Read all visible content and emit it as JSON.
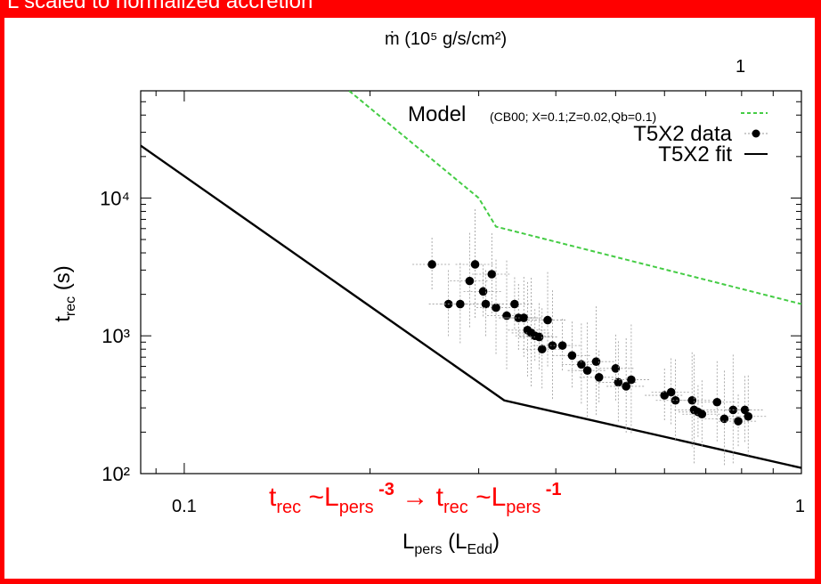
{
  "banner": {
    "text": "L scaled to normalized accretion",
    "color": "#ff0000"
  },
  "top_axis": {
    "label": "ṁ (10⁵ g/s/cm²)",
    "tick": "1"
  },
  "chart_data": {
    "type": "scatter",
    "x_scale": "log",
    "y_scale": "log",
    "xlim": [
      0.085,
      1
    ],
    "ylim": [
      100,
      60000
    ],
    "xlabel": "L_pers (L_Edd)",
    "ylabel": "t_rec (s)",
    "x_ticks": [
      {
        "value": 0.1,
        "label": "0.1"
      },
      {
        "value": 1,
        "label": "1"
      }
    ],
    "y_ticks": [
      {
        "value": 100,
        "label": "10²"
      },
      {
        "value": 1000,
        "label": "10³"
      },
      {
        "value": 10000,
        "label": "10⁴"
      }
    ],
    "grid": false,
    "legend_position": "top-right",
    "legend": [
      {
        "name": "Model",
        "detail": "(CB00; X=0.1;Z=0.02,Qb=0.1)",
        "style": "dashed-line",
        "color": "#44cc44"
      },
      {
        "name": "T5X2 data",
        "style": "points",
        "color": "#000000"
      },
      {
        "name": "T5X2 fit",
        "style": "solid-line",
        "color": "#000000"
      }
    ],
    "series": [
      {
        "name": "Model",
        "kind": "line",
        "color": "#44cc44",
        "x": [
          0.185,
          0.3,
          0.32,
          1.0
        ],
        "y": [
          60000,
          10000,
          6200,
          1700
        ]
      },
      {
        "name": "T5X2 fit",
        "kind": "line",
        "color": "#000000",
        "x": [
          0.085,
          0.33,
          1.0
        ],
        "y": [
          24000,
          340,
          110
        ]
      },
      {
        "name": "T5X2 data",
        "kind": "points",
        "color": "#000000",
        "x": [
          0.252,
          0.268,
          0.28,
          0.29,
          0.296,
          0.305,
          0.308,
          0.315,
          0.32,
          0.333,
          0.343,
          0.348,
          0.355,
          0.36,
          0.365,
          0.37,
          0.376,
          0.38,
          0.388,
          0.395,
          0.41,
          0.425,
          0.44,
          0.45,
          0.465,
          0.47,
          0.5,
          0.505,
          0.52,
          0.53,
          0.6,
          0.615,
          0.625,
          0.665,
          0.67,
          0.68,
          0.69,
          0.73,
          0.75,
          0.775,
          0.79,
          0.81,
          0.82
        ],
        "y": [
          3300,
          1700,
          1700,
          2500,
          3300,
          2100,
          1700,
          2800,
          1600,
          1400,
          1700,
          1350,
          1350,
          1100,
          1050,
          1000,
          980,
          800,
          1300,
          850,
          850,
          720,
          620,
          560,
          650,
          500,
          580,
          460,
          430,
          480,
          370,
          390,
          340,
          340,
          290,
          280,
          270,
          330,
          250,
          290,
          240,
          290,
          260
        ]
      }
    ],
    "annotation": {
      "text": "t_rec ~L_pers^-3 → t_rec ~L_pers^-1",
      "color": "#ff0000"
    }
  }
}
